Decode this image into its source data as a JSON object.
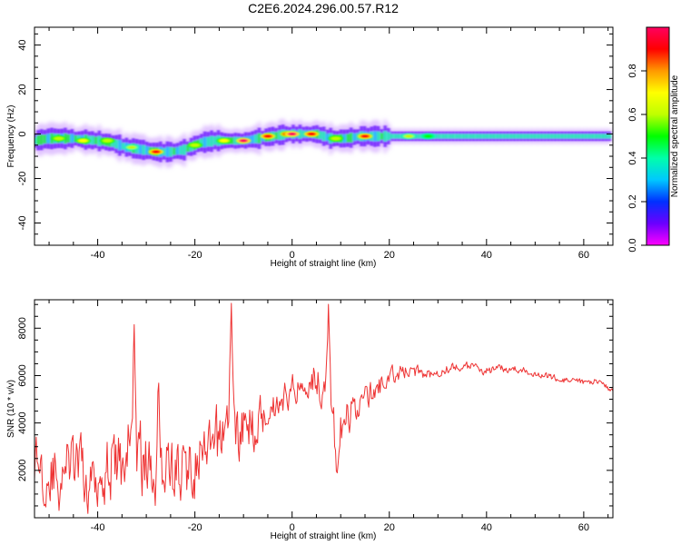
{
  "title": "C2E6.2024.296.00.57.R12",
  "chart_data": [
    {
      "type": "heatmap",
      "xlabel": "Height of straight line (km)",
      "ylabel": "Frequency (Hz)",
      "xlim": [
        -53,
        66
      ],
      "ylim": [
        -50,
        48
      ],
      "xticks": [
        -40,
        -20,
        0,
        20,
        40,
        60
      ],
      "yticks": [
        -40,
        -20,
        0,
        20,
        40
      ],
      "colorbar": {
        "label": "Normalized spectral amplitude",
        "range": [
          0,
          1
        ],
        "ticks": [
          "0.0",
          "0.2",
          "0.4",
          "0.6",
          "0.8"
        ],
        "colors": [
          "#ff00ff",
          "#6a00ff",
          "#0030ff",
          "#00c8ff",
          "#00ffaa",
          "#00ff00",
          "#bfff00",
          "#ffff00",
          "#ff9900",
          "#ff0000",
          "#ff0060"
        ]
      },
      "ridge": {
        "x": [
          -53,
          -50,
          -45,
          -40,
          -37,
          -34,
          -31,
          -28,
          -25,
          -22,
          -19,
          -16,
          -13,
          -10,
          -7,
          -4,
          -1,
          2,
          5,
          8,
          11,
          14,
          17,
          20,
          25,
          30,
          40,
          50,
          60,
          65
        ],
        "y": [
          -3,
          -2,
          -2,
          -3,
          -4,
          -6,
          -7,
          -8,
          -8,
          -7,
          -4,
          -3,
          -3,
          -3,
          -2,
          -1,
          0,
          0,
          0,
          -2,
          -2,
          -1,
          -1,
          -1,
          -1,
          -1,
          -1,
          -1,
          -1,
          -1
        ]
      },
      "hotspots": {
        "x": [
          -48,
          -43,
          -38,
          -33,
          -28,
          -20,
          -14,
          -10,
          -5,
          -1,
          0,
          4,
          9,
          15,
          24,
          28
        ],
        "y": [
          -2,
          -3,
          -3,
          -6,
          -8,
          -5,
          -3,
          -3,
          -1,
          0,
          0,
          0,
          -2,
          -1,
          -1,
          -1
        ],
        "amplitude": [
          0.6,
          0.65,
          0.6,
          0.55,
          0.9,
          0.6,
          0.65,
          0.95,
          0.9,
          0.85,
          0.95,
          0.9,
          0.6,
          0.9,
          0.55,
          0.5
        ]
      }
    },
    {
      "type": "line",
      "xlabel": "Height of straight line (km)",
      "ylabel": "SNR (10 * v/v)",
      "xlim": [
        -53,
        66
      ],
      "ylim": [
        0,
        9200
      ],
      "xticks": [
        -40,
        -20,
        0,
        20,
        40,
        60
      ],
      "yticks": [
        2000,
        4000,
        6000,
        8000
      ],
      "color": "#ee3333",
      "x": [
        -53,
        -50,
        -47,
        -44,
        -41,
        -38,
        -35,
        -33,
        -31,
        -29,
        -26,
        -23,
        -20,
        -17,
        -15,
        -13,
        -11,
        -8,
        -5,
        -2,
        0,
        2,
        4,
        6,
        8,
        9,
        11,
        14,
        17,
        20,
        24,
        28,
        32,
        36,
        40,
        44,
        48,
        52,
        56,
        60,
        63,
        66
      ],
      "y_mean": [
        2600,
        1700,
        2300,
        2100,
        1900,
        2100,
        2300,
        3200,
        2500,
        1900,
        2200,
        1900,
        2200,
        2600,
        3400,
        4400,
        3600,
        3900,
        4600,
        5000,
        5400,
        5600,
        6000,
        5600,
        5000,
        3000,
        4100,
        4900,
        5300,
        6000,
        6200,
        6100,
        6300,
        6400,
        6200,
        6300,
        6200,
        6000,
        5800,
        5700,
        5800,
        5300
      ],
      "y_amp": [
        1500,
        1600,
        1700,
        1800,
        1900,
        1900,
        2000,
        2200,
        2100,
        2000,
        2000,
        2000,
        1900,
        1800,
        1900,
        1900,
        1700,
        1500,
        1100,
        900,
        900,
        900,
        1000,
        1100,
        1300,
        1400,
        1100,
        900,
        700,
        500,
        400,
        350,
        300,
        250,
        250,
        220,
        200,
        200,
        180,
        180,
        160,
        150
      ],
      "spikes": [
        [
          -32.5,
          8400
        ],
        [
          -27.5,
          6300
        ],
        [
          -12.5,
          9050
        ],
        [
          7.5,
          9200
        ],
        [
          9.2,
          1700
        ],
        [
          -51,
          500
        ],
        [
          -48,
          200
        ],
        [
          -42,
          100
        ]
      ]
    }
  ]
}
